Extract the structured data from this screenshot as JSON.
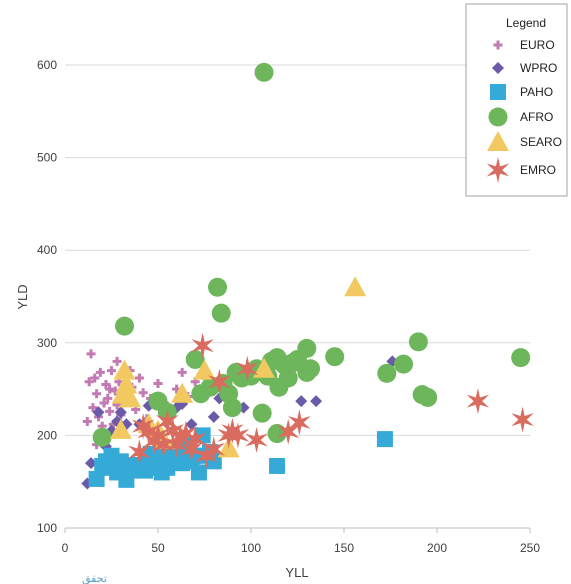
{
  "chart_data": {
    "type": "scatter",
    "xlabel": "YLL",
    "ylabel": "YLD",
    "xlim": [
      0,
      250
    ],
    "ylim": [
      100,
      600
    ],
    "xticks": [
      0,
      50,
      100,
      150,
      200,
      250
    ],
    "yticks": [
      100,
      200,
      300,
      400,
      500,
      600
    ],
    "grid": "horizontal",
    "legend": {
      "title": "Legend",
      "position": "top-right"
    },
    "colors": {
      "EURO": "#c27ab3",
      "WPRO": "#6a5aa8",
      "PAHO": "#35aad6",
      "AFRO": "#6db65b",
      "SEARO": "#f2c960",
      "EMRO": "#d96b5f"
    },
    "series": [
      {
        "name": "EURO",
        "marker": "plus",
        "points": [
          [
            12,
            215
          ],
          [
            13,
            258
          ],
          [
            14,
            288
          ],
          [
            15,
            230
          ],
          [
            16,
            262
          ],
          [
            17,
            245
          ],
          [
            18,
            220
          ],
          [
            19,
            268
          ],
          [
            20,
            210
          ],
          [
            21,
            235
          ],
          [
            22,
            255
          ],
          [
            23,
            240
          ],
          [
            24,
            226
          ],
          [
            25,
            270
          ],
          [
            26,
            212
          ],
          [
            27,
            248
          ],
          [
            28,
            233
          ],
          [
            29,
            258
          ],
          [
            30,
            222
          ],
          [
            31,
            244
          ],
          [
            32,
            266
          ],
          [
            34,
            238
          ],
          [
            36,
            252
          ],
          [
            38,
            228
          ],
          [
            40,
            262
          ],
          [
            42,
            246
          ],
          [
            44,
            218
          ],
          [
            46,
            240
          ],
          [
            50,
            256
          ],
          [
            55,
            232
          ],
          [
            60,
            250
          ],
          [
            63,
            268
          ],
          [
            66,
            242
          ],
          [
            70,
            258
          ],
          [
            20,
            200
          ],
          [
            24,
            250
          ],
          [
            28,
            280
          ],
          [
            35,
            270
          ],
          [
            17,
            190
          ],
          [
            26,
            205
          ]
        ]
      },
      {
        "name": "WPRO",
        "marker": "diamond",
        "points": [
          [
            12,
            148
          ],
          [
            14,
            170
          ],
          [
            18,
            225
          ],
          [
            20,
            198
          ],
          [
            22,
            188
          ],
          [
            25,
            205
          ],
          [
            28,
            215
          ],
          [
            30,
            225
          ],
          [
            33,
            212
          ],
          [
            35,
            240
          ],
          [
            40,
            212
          ],
          [
            45,
            232
          ],
          [
            48,
            200
          ],
          [
            55,
            222
          ],
          [
            60,
            230
          ],
          [
            63,
            234
          ],
          [
            68,
            212
          ],
          [
            74,
            266
          ],
          [
            80,
            220
          ],
          [
            83,
            240
          ],
          [
            90,
            228
          ],
          [
            96,
            230
          ],
          [
            127,
            237
          ],
          [
            135,
            237
          ],
          [
            176,
            280
          ]
        ]
      },
      {
        "name": "PAHO",
        "marker": "square",
        "points": [
          [
            17,
            153
          ],
          [
            20,
            167
          ],
          [
            22,
            172
          ],
          [
            24,
            165
          ],
          [
            25,
            178
          ],
          [
            28,
            160
          ],
          [
            30,
            172
          ],
          [
            33,
            152
          ],
          [
            35,
            162
          ],
          [
            38,
            168
          ],
          [
            40,
            168
          ],
          [
            43,
            162
          ],
          [
            45,
            172
          ],
          [
            46,
            180
          ],
          [
            48,
            165
          ],
          [
            50,
            172
          ],
          [
            52,
            160
          ],
          [
            53,
            178
          ],
          [
            55,
            165
          ],
          [
            57,
            172
          ],
          [
            58,
            182
          ],
          [
            60,
            175
          ],
          [
            62,
            188
          ],
          [
            63,
            170
          ],
          [
            65,
            180
          ],
          [
            67,
            190
          ],
          [
            68,
            172
          ],
          [
            70,
            178
          ],
          [
            72,
            160
          ],
          [
            74,
            200
          ],
          [
            76,
            178
          ],
          [
            78,
            182
          ],
          [
            80,
            172
          ],
          [
            114,
            167
          ],
          [
            172,
            196
          ]
        ]
      },
      {
        "name": "AFRO",
        "marker": "circle",
        "points": [
          [
            20,
            198
          ],
          [
            32,
            318
          ],
          [
            50,
            237
          ],
          [
            55,
            225
          ],
          [
            70,
            282
          ],
          [
            73,
            245
          ],
          [
            78,
            252
          ],
          [
            82,
            360
          ],
          [
            84,
            332
          ],
          [
            85,
            256
          ],
          [
            88,
            245
          ],
          [
            90,
            230
          ],
          [
            92,
            268
          ],
          [
            95,
            262
          ],
          [
            100,
            264
          ],
          [
            103,
            272
          ],
          [
            106,
            224
          ],
          [
            107,
            592
          ],
          [
            109,
            264
          ],
          [
            111,
            280
          ],
          [
            114,
            284
          ],
          [
            114,
            202
          ],
          [
            115,
            252
          ],
          [
            118,
            276
          ],
          [
            120,
            262
          ],
          [
            122,
            278
          ],
          [
            125,
            282
          ],
          [
            130,
            294
          ],
          [
            130,
            268
          ],
          [
            132,
            272
          ],
          [
            145,
            285
          ],
          [
            173,
            267
          ],
          [
            182,
            277
          ],
          [
            190,
            301
          ],
          [
            192,
            244
          ],
          [
            195,
            241
          ],
          [
            245,
            284
          ]
        ]
      },
      {
        "name": "SEARO",
        "marker": "triangle",
        "points": [
          [
            30,
            206
          ],
          [
            31,
            244
          ],
          [
            32,
            270
          ],
          [
            33,
            255
          ],
          [
            35,
            240
          ],
          [
            45,
            212
          ],
          [
            50,
            205
          ],
          [
            53,
            195
          ],
          [
            63,
            245
          ],
          [
            75,
            270
          ],
          [
            88,
            186
          ],
          [
            107,
            272
          ],
          [
            156,
            360
          ]
        ]
      },
      {
        "name": "EMRO",
        "marker": "star",
        "points": [
          [
            40,
            182
          ],
          [
            42,
            210
          ],
          [
            45,
            204
          ],
          [
            48,
            194
          ],
          [
            50,
            200
          ],
          [
            53,
            190
          ],
          [
            55,
            215
          ],
          [
            58,
            205
          ],
          [
            60,
            190
          ],
          [
            62,
            198
          ],
          [
            65,
            202
          ],
          [
            68,
            185
          ],
          [
            70,
            196
          ],
          [
            74,
            297
          ],
          [
            76,
            178
          ],
          [
            80,
            185
          ],
          [
            83,
            258
          ],
          [
            88,
            200
          ],
          [
            90,
            205
          ],
          [
            93,
            200
          ],
          [
            98,
            272
          ],
          [
            103,
            195
          ],
          [
            120,
            204
          ],
          [
            126,
            214
          ],
          [
            222,
            237
          ],
          [
            246,
            217
          ]
        ]
      }
    ]
  },
  "watermark": "تحقق"
}
